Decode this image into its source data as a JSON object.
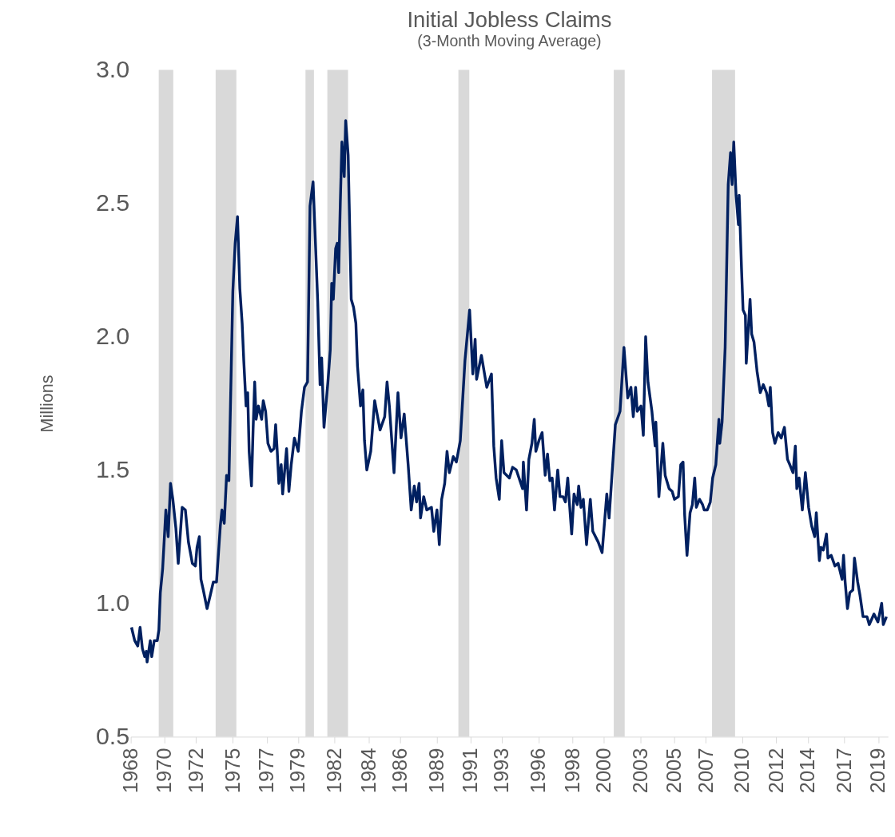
{
  "chart_data": {
    "type": "line",
    "title": "Initial Jobless Claims",
    "subtitle": "(3-Month Moving Average)",
    "ylabel": "Millions",
    "series": [
      {
        "color": "#002060",
        "line_style": "solid",
        "x": [
          1968.05,
          1968.27,
          1968.48,
          1968.64,
          1968.8,
          1968.96,
          1969.07,
          1969.12,
          1969.34,
          1969.44,
          1969.61,
          1969.82,
          1969.93,
          1970.03,
          1970.19,
          1970.41,
          1970.57,
          1970.73,
          1970.89,
          1971.1,
          1971.26,
          1971.53,
          1971.75,
          1971.96,
          1972.23,
          1972.44,
          1972.55,
          1972.71,
          1972.82,
          1972.98,
          1973.24,
          1973.46,
          1973.67,
          1973.89,
          1974.15,
          1974.26,
          1974.42,
          1974.58,
          1974.74,
          1974.9,
          1975.01,
          1975.17,
          1975.33,
          1975.49,
          1975.65,
          1975.76,
          1975.92,
          1976.03,
          1976.13,
          1976.29,
          1976.4,
          1976.51,
          1976.61,
          1976.77,
          1976.99,
          1977.1,
          1977.26,
          1977.42,
          1977.63,
          1977.84,
          1977.95,
          1978.06,
          1978.17,
          1978.33,
          1978.43,
          1978.7,
          1978.86,
          1979.02,
          1979.24,
          1979.5,
          1979.72,
          1979.93,
          1980.14,
          1980.31,
          1980.52,
          1980.84,
          1981.0,
          1981.11,
          1981.27,
          1981.54,
          1981.7,
          1981.8,
          1981.91,
          1982.07,
          1982.18,
          1982.28,
          1982.39,
          1982.5,
          1982.66,
          1982.76,
          1982.93,
          1983.14,
          1983.3,
          1983.46,
          1983.57,
          1983.78,
          1983.94,
          1984.05,
          1984.21,
          1984.48,
          1984.75,
          1985.12,
          1985.44,
          1985.6,
          1985.76,
          1986.08,
          1986.35,
          1986.56,
          1986.78,
          1987.05,
          1987.26,
          1987.47,
          1987.63,
          1987.8,
          1987.9,
          1988.12,
          1988.33,
          1988.65,
          1988.81,
          1989.03,
          1989.19,
          1989.35,
          1989.56,
          1989.72,
          1989.88,
          1990.15,
          1990.36,
          1990.63,
          1990.95,
          1991.27,
          1991.49,
          1991.65,
          1991.75,
          1992.08,
          1992.45,
          1992.77,
          1992.93,
          1993.09,
          1993.31,
          1993.47,
          1993.63,
          1994.0,
          1994.22,
          1994.48,
          1994.91,
          1994.96,
          1995.18,
          1995.34,
          1995.55,
          1995.71,
          1995.82,
          1996.03,
          1996.25,
          1996.46,
          1996.62,
          1996.78,
          1996.94,
          1997.1,
          1997.32,
          1997.48,
          1997.69,
          1997.85,
          1998.01,
          1998.12,
          1998.28,
          1998.44,
          1998.66,
          1998.76,
          1998.92,
          1999.08,
          1999.3,
          1999.56,
          1999.73,
          2000.1,
          2000.37,
          2000.69,
          2000.85,
          2001.28,
          2001.6,
          2001.87,
          2002.13,
          2002.35,
          2002.51,
          2002.67,
          2002.78,
          2003.04,
          2003.2,
          2003.36,
          2003.52,
          2003.79,
          2004.01,
          2004.06,
          2004.27,
          2004.54,
          2004.7,
          2004.97,
          2005.18,
          2005.34,
          2005.61,
          2005.77,
          2005.93,
          2006.04,
          2006.2,
          2006.41,
          2006.57,
          2006.73,
          2006.84,
          2007.06,
          2007.27,
          2007.38,
          2007.59,
          2007.8,
          2007.96,
          2008.18,
          2008.39,
          2008.45,
          2008.61,
          2008.82,
          2009.03,
          2009.19,
          2009.3,
          2009.41,
          2009.57,
          2009.73,
          2009.78,
          2009.94,
          2010.05,
          2010.21,
          2010.27,
          2010.53,
          2010.64,
          2010.8,
          2011.01,
          2011.23,
          2011.44,
          2011.66,
          2011.82,
          2011.92,
          2012.08,
          2012.24,
          2012.46,
          2012.67,
          2012.89,
          2013.1,
          2013.26,
          2013.48,
          2013.64,
          2013.74,
          2013.9,
          2014.12,
          2014.33,
          2014.55,
          2014.76,
          2014.97,
          2015.08,
          2015.29,
          2015.4,
          2015.56,
          2015.78,
          2015.88,
          2016.1,
          2016.36,
          2016.58,
          2016.85,
          2016.95,
          2017.06,
          2017.22,
          2017.38,
          2017.59,
          2017.7,
          2017.92,
          2018.08,
          2018.29,
          2018.56,
          2018.72,
          2019.04,
          2019.31,
          2019.57,
          2019.68,
          2019.9
        ],
        "values": [
          0.91,
          0.86,
          0.84,
          0.91,
          0.83,
          0.8,
          0.82,
          0.78,
          0.86,
          0.8,
          0.86,
          0.86,
          0.9,
          1.04,
          1.13,
          1.35,
          1.25,
          1.45,
          1.39,
          1.28,
          1.15,
          1.36,
          1.35,
          1.23,
          1.15,
          1.14,
          1.21,
          1.25,
          1.09,
          1.05,
          0.98,
          1.03,
          1.08,
          1.08,
          1.29,
          1.35,
          1.3,
          1.48,
          1.46,
          1.88,
          2.17,
          2.35,
          2.45,
          2.18,
          2.05,
          1.91,
          1.74,
          1.79,
          1.57,
          1.44,
          1.65,
          1.83,
          1.69,
          1.74,
          1.69,
          1.76,
          1.72,
          1.6,
          1.57,
          1.58,
          1.67,
          1.57,
          1.45,
          1.52,
          1.41,
          1.58,
          1.42,
          1.52,
          1.62,
          1.57,
          1.72,
          1.81,
          1.83,
          2.49,
          2.58,
          2.13,
          1.82,
          1.92,
          1.66,
          1.83,
          1.95,
          2.2,
          2.14,
          2.33,
          2.35,
          2.24,
          2.5,
          2.73,
          2.6,
          2.81,
          2.68,
          2.14,
          2.11,
          2.05,
          1.89,
          1.74,
          1.8,
          1.61,
          1.5,
          1.57,
          1.76,
          1.65,
          1.7,
          1.83,
          1.74,
          1.49,
          1.79,
          1.62,
          1.71,
          1.52,
          1.35,
          1.44,
          1.38,
          1.45,
          1.32,
          1.4,
          1.35,
          1.36,
          1.27,
          1.35,
          1.22,
          1.39,
          1.45,
          1.57,
          1.49,
          1.55,
          1.53,
          1.61,
          1.91,
          2.1,
          1.86,
          1.99,
          1.84,
          1.93,
          1.81,
          1.86,
          1.59,
          1.47,
          1.39,
          1.61,
          1.49,
          1.47,
          1.51,
          1.5,
          1.43,
          1.53,
          1.35,
          1.54,
          1.6,
          1.69,
          1.57,
          1.61,
          1.64,
          1.48,
          1.56,
          1.46,
          1.47,
          1.35,
          1.5,
          1.4,
          1.4,
          1.38,
          1.47,
          1.38,
          1.26,
          1.41,
          1.37,
          1.44,
          1.36,
          1.39,
          1.22,
          1.39,
          1.27,
          1.23,
          1.19,
          1.41,
          1.32,
          1.67,
          1.72,
          1.96,
          1.77,
          1.81,
          1.7,
          1.81,
          1.72,
          1.74,
          1.63,
          2.0,
          1.83,
          1.72,
          1.59,
          1.68,
          1.4,
          1.6,
          1.48,
          1.43,
          1.42,
          1.39,
          1.4,
          1.52,
          1.53,
          1.33,
          1.18,
          1.34,
          1.37,
          1.47,
          1.36,
          1.39,
          1.37,
          1.35,
          1.35,
          1.38,
          1.47,
          1.52,
          1.69,
          1.6,
          1.68,
          1.96,
          2.57,
          2.69,
          2.57,
          2.73,
          2.53,
          2.42,
          2.53,
          2.26,
          2.1,
          2.08,
          1.9,
          2.14,
          2.01,
          1.98,
          1.87,
          1.79,
          1.82,
          1.79,
          1.74,
          1.81,
          1.64,
          1.6,
          1.64,
          1.62,
          1.66,
          1.54,
          1.52,
          1.49,
          1.59,
          1.43,
          1.47,
          1.35,
          1.49,
          1.36,
          1.29,
          1.25,
          1.34,
          1.16,
          1.21,
          1.2,
          1.26,
          1.17,
          1.18,
          1.14,
          1.15,
          1.09,
          1.18,
          1.08,
          0.98,
          1.04,
          1.05,
          1.17,
          1.08,
          1.03,
          0.95,
          0.95,
          0.92,
          0.96,
          0.93,
          1.0,
          0.92,
          0.95
        ]
      }
    ],
    "xlim": [
      1968,
      2020
    ],
    "xticks": [
      {
        "value": 1968,
        "label": "1968"
      },
      {
        "value": 1970.333,
        "label": "1970"
      },
      {
        "value": 1972.49,
        "label": "1972"
      },
      {
        "value": 1975,
        "label": "1975"
      },
      {
        "value": 1977.333,
        "label": "1977"
      },
      {
        "value": 1979.49,
        "label": "1979"
      },
      {
        "value": 1982,
        "label": "1982"
      },
      {
        "value": 1984.333,
        "label": "1984"
      },
      {
        "value": 1986.49,
        "label": "1986"
      },
      {
        "value": 1989,
        "label": "1989"
      },
      {
        "value": 1991.333,
        "label": "1991"
      },
      {
        "value": 1993.49,
        "label": "1993"
      },
      {
        "value": 1996,
        "label": "1996"
      },
      {
        "value": 1998.333,
        "label": "1998"
      },
      {
        "value": 2000.49,
        "label": "2000"
      },
      {
        "value": 2003,
        "label": "2003"
      },
      {
        "value": 2005.333,
        "label": "2005"
      },
      {
        "value": 2007.49,
        "label": "2007"
      },
      {
        "value": 2010,
        "label": "2010"
      },
      {
        "value": 2012.333,
        "label": "2012"
      },
      {
        "value": 2014.49,
        "label": "2014"
      },
      {
        "value": 2017,
        "label": "2017"
      },
      {
        "value": 2019.333,
        "label": "2019"
      }
    ],
    "ylim": [
      0.5,
      3.0
    ],
    "yticks": [
      {
        "value": 0.5,
        "label": "0.5"
      },
      {
        "value": 1.0,
        "label": "1.0"
      },
      {
        "value": 1.5,
        "label": "1.5"
      },
      {
        "value": 2.0,
        "label": "2.0"
      },
      {
        "value": 2.5,
        "label": "2.5"
      },
      {
        "value": 3.0,
        "label": "3.0"
      }
    ],
    "bands": [
      {
        "axis": "x",
        "from": 1969.92,
        "to": 1970.92,
        "label": null,
        "color": "#d9d9d9"
      },
      {
        "axis": "x",
        "from": 1973.83,
        "to": 1975.25,
        "label": null,
        "color": "#d9d9d9"
      },
      {
        "axis": "x",
        "from": 1980.0,
        "to": 1980.58,
        "label": null,
        "color": "#d9d9d9"
      },
      {
        "axis": "x",
        "from": 1981.5,
        "to": 1982.92,
        "label": null,
        "color": "#d9d9d9"
      },
      {
        "axis": "x",
        "from": 1990.5,
        "to": 1991.25,
        "label": null,
        "color": "#d9d9d9"
      },
      {
        "axis": "x",
        "from": 2001.17,
        "to": 2001.92,
        "label": null,
        "color": "#d9d9d9"
      },
      {
        "axis": "x",
        "from": 2007.92,
        "to": 2009.5,
        "label": null,
        "color": "#d9d9d9"
      }
    ],
    "grid": false
  }
}
